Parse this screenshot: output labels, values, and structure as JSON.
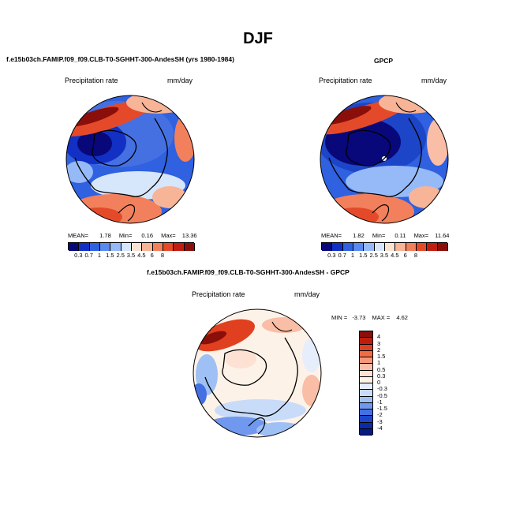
{
  "title": "DJF",
  "panels": [
    {
      "name": "model",
      "heading": "f.e15b03ch.FAMIP.f09_f09.CLB-T0-SGHHT-300-AndesSH (yrs 1980-1984)",
      "variable": "Precipitation rate",
      "units": "mm/day",
      "stats": {
        "mean_label": "MEAN=",
        "mean": "1.78",
        "min_label": "Min=",
        "min": "0.16",
        "max_label": "Max=",
        "max": "13.36"
      }
    },
    {
      "name": "obs",
      "heading": "GPCP",
      "variable": "Precipitation rate",
      "units": "mm/day",
      "stats": {
        "mean_label": "MEAN=",
        "mean": "1.82",
        "min_label": "Min=",
        "min": "0.11",
        "max_label": "Max=",
        "max": "11.64"
      }
    },
    {
      "name": "diff",
      "heading": "f.e15b03ch.FAMIP.f09_f09.CLB-T0-SGHHT-300-AndesSH - GPCP",
      "variable": "Precipitation rate",
      "units": "mm/day",
      "stats": {
        "min_label": "MIN =",
        "min": "-3.73",
        "max_label": "MAX =",
        "max": "4.62"
      }
    }
  ],
  "colorbar_abs": {
    "labels": [
      "0.3",
      "0.7",
      "1",
      "1.5",
      "2.5",
      "3.5",
      "4.5",
      "6",
      "8"
    ],
    "colors": [
      "#08087a",
      "#1330c4",
      "#2f61e0",
      "#5a8af0",
      "#96baf8",
      "#d6e6fb",
      "#fbe3d4",
      "#f7b496",
      "#f2805c",
      "#e44a2a",
      "#c11e12",
      "#8a0f0a"
    ]
  },
  "colorbar_diff": {
    "labels": [
      "4",
      "3",
      "2",
      "1.5",
      "1",
      "0.5",
      "0.3",
      "0",
      "-0.3",
      "-0.5",
      "-1",
      "-1.5",
      "-2",
      "-3",
      "-4"
    ],
    "colors": [
      "#8a0f0a",
      "#bf1c10",
      "#e0401f",
      "#ef6c44",
      "#f6977b",
      "#fabda6",
      "#fde1d3",
      "#fdf2e8",
      "#e6eefb",
      "#c8dbf8",
      "#9fc0f5",
      "#6f98ee",
      "#4470e2",
      "#1d45c8",
      "#0c2aa6",
      "#061a80"
    ]
  }
}
